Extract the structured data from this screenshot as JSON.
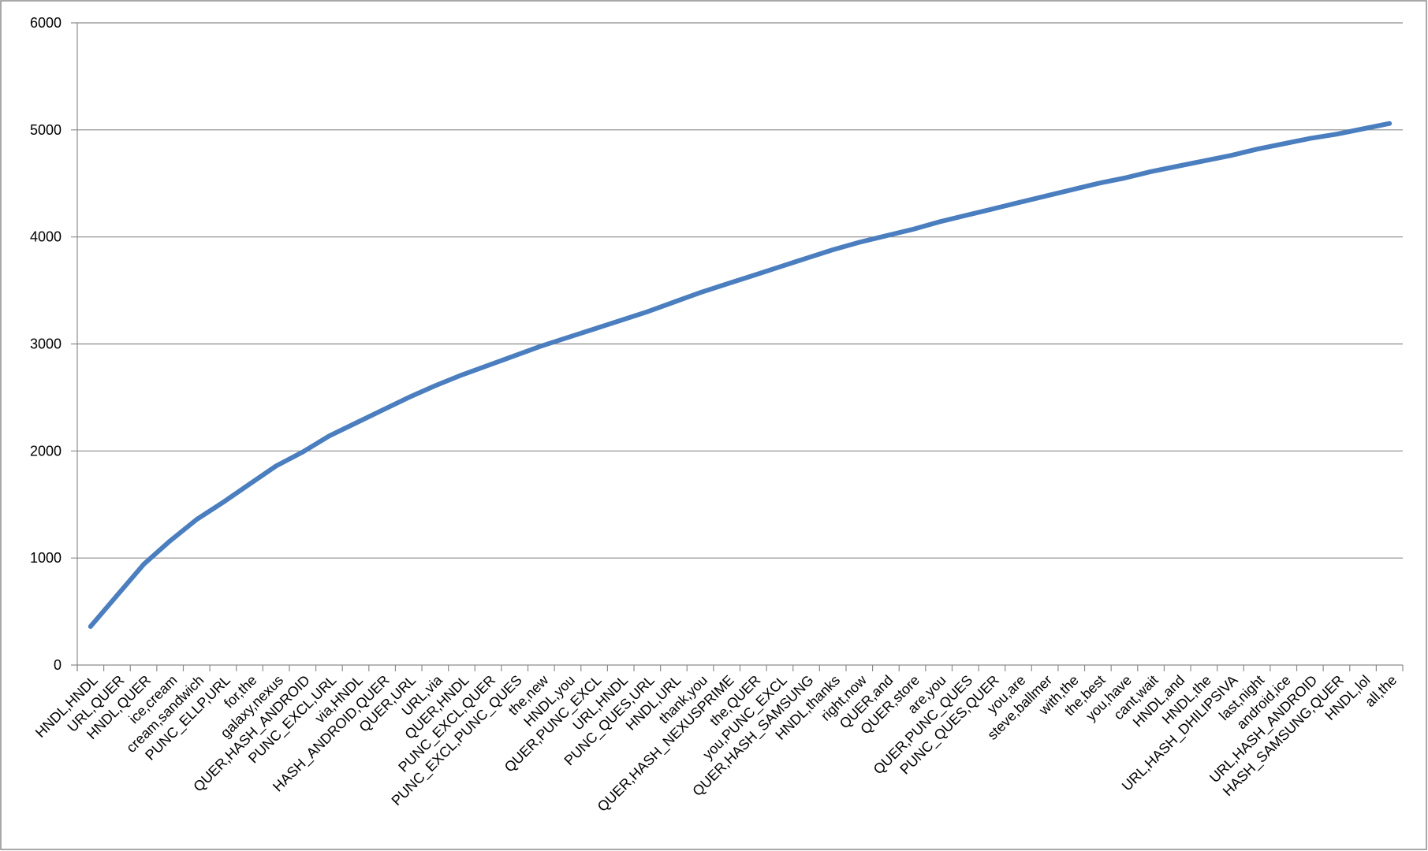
{
  "chart_data": {
    "type": "line",
    "categories": [
      "HNDL,HNDL",
      "URL,QUER",
      "HNDL,QUER",
      "ice,cream",
      "cream,sandwich",
      "PUNC_ELLP,URL",
      "for,the",
      "galaxy,nexus",
      "QUER,HASH_ANDROID",
      "PUNC_EXCL,URL",
      "via,HNDL",
      "HASH_ANDROID,QUER",
      "QUER,URL",
      "URL,via",
      "QUER,HNDL",
      "PUNC_EXCL,QUER",
      "PUNC_EXCL,PUNC_QUES",
      "the,new",
      "HNDL,you",
      "QUER,PUNC_EXCL",
      "URL,HNDL",
      "PUNC_QUES,URL",
      "HNDL,URL",
      "thank,you",
      "QUER,HASH_NEXUSPRIME",
      "the,QUER",
      "you,PUNC_EXCL",
      "QUER,HASH_SAMSUNG",
      "HNDL,thanks",
      "right,now",
      "QUER,and",
      "QUER,store",
      "are,you",
      "QUER,PUNC_QUES",
      "PUNC_QUES,QUER",
      "you,are",
      "steve,ballmer",
      "with,the",
      "the,best",
      "you,have",
      "cant,wait",
      "HNDL,and",
      "HNDL,the",
      "URL,HASH_DHILIPSIVA",
      "last,night",
      "android,ice",
      "URL,HASH_ANDROID",
      "HASH_SAMSUNG,QUER",
      "HNDL,lol",
      "all,the"
    ],
    "values": [
      360,
      650,
      940,
      1160,
      1360,
      1520,
      1690,
      1860,
      1990,
      2140,
      2260,
      2380,
      2500,
      2610,
      2710,
      2800,
      2890,
      2980,
      3060,
      3140,
      3220,
      3300,
      3390,
      3480,
      3560,
      3640,
      3720,
      3800,
      3880,
      3950,
      4010,
      4070,
      4140,
      4200,
      4260,
      4320,
      4380,
      4440,
      4500,
      4550,
      4610,
      4660,
      4710,
      4760,
      4820,
      4870,
      4920,
      4960,
      5010,
      5060
    ],
    "color": "#4a7ebf",
    "ylim": [
      0,
      6000
    ],
    "yticks": [
      0,
      1000,
      2000,
      3000,
      4000,
      5000,
      6000
    ],
    "grid": true
  }
}
